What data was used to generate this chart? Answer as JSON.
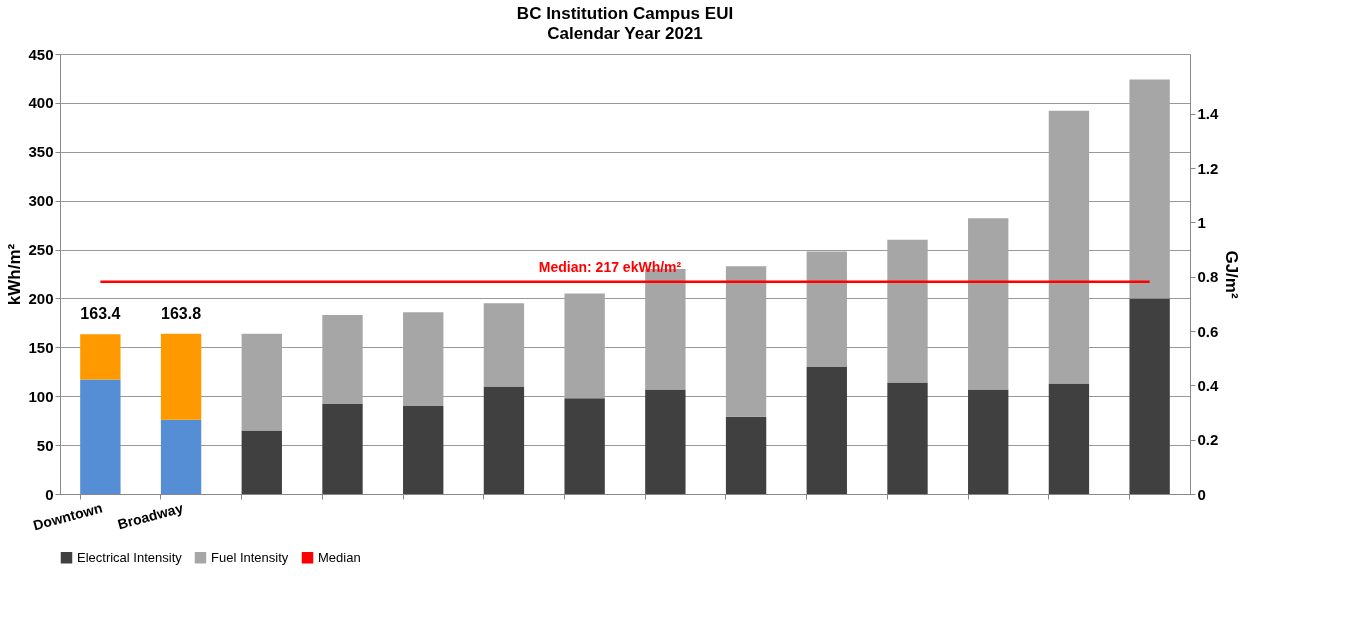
{
  "chart_data": {
    "type": "bar",
    "title": "BC Institution Campus EUI",
    "subtitle": "Calendar Year 2021",
    "ylabel": "kWh/m²",
    "y2label": "GJ/m²",
    "categories": [
      "Downtown",
      "Broadway",
      null,
      null,
      null,
      null,
      null,
      null,
      null,
      null,
      null,
      null,
      null,
      null
    ],
    "stacked": true,
    "series": [
      {
        "name": "Electrical Intensity",
        "color": "#404040",
        "colors": [
          "#558ed5",
          "#558ed5",
          "#404040",
          "#404040",
          "#404040",
          "#404040",
          "#404040",
          "#404040",
          "#404040",
          "#404040",
          "#404040",
          "#404040",
          "#404040",
          "#404040"
        ],
        "values": [
          117,
          76,
          65,
          92,
          90,
          110,
          98,
          107,
          79,
          130,
          114,
          107,
          113,
          200
        ]
      },
      {
        "name": "Fuel Intensity",
        "color": "#a6a6a6",
        "colors": [
          "#ff9900",
          "#ff9900",
          "#a6a6a6",
          "#a6a6a6",
          "#a6a6a6",
          "#a6a6a6",
          "#a6a6a6",
          "#a6a6a6",
          "#a6a6a6",
          "#a6a6a6",
          "#a6a6a6",
          "#a6a6a6",
          "#a6a6a6",
          "#a6a6a6"
        ],
        "values": [
          46.4,
          87.8,
          99,
          91,
          96,
          85,
          107,
          123,
          154,
          118,
          146,
          175,
          279,
          224
        ]
      },
      {
        "name": "Median",
        "type": "line",
        "color": "#ff0000",
        "values": [
          217,
          217,
          217,
          217,
          217,
          217,
          217,
          217,
          217,
          217,
          217,
          217,
          217,
          217
        ]
      }
    ],
    "totals": [
      "163.4",
      "163.8",
      null,
      null,
      null,
      null,
      null,
      null,
      null,
      null,
      null,
      null,
      null,
      null
    ],
    "annotations": [
      {
        "text": "Median: 217 ekWh/m²",
        "y": 217
      }
    ],
    "ylim": [
      0,
      450
    ],
    "yticks": [
      0,
      50,
      100,
      150,
      200,
      250,
      300,
      350,
      400,
      450
    ],
    "y2lim": [
      0,
      1.62
    ],
    "y2ticks": [
      0,
      0.2,
      0.4,
      0.6,
      0.8,
      1,
      1.2,
      1.4
    ],
    "grid": "y",
    "legend": "bottom"
  }
}
